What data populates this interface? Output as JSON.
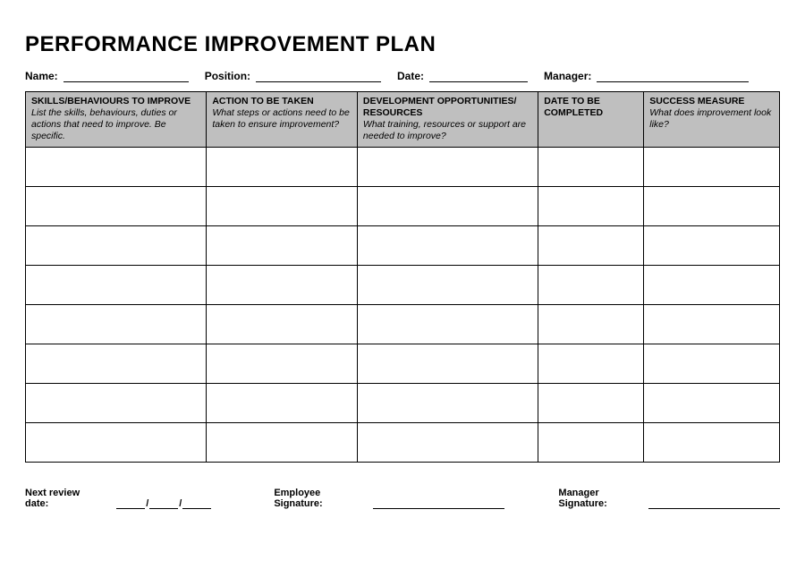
{
  "title": "PERFORMANCE IMPROVEMENT PLAN",
  "info_fields": {
    "name": {
      "label": "Name:",
      "line_width": 140
    },
    "position": {
      "label": "Position:",
      "line_width": 140
    },
    "date": {
      "label": "Date:",
      "line_width": 110
    },
    "manager": {
      "label": "Manager:",
      "line_width": 170
    }
  },
  "table": {
    "columns": [
      {
        "title": "SKILLS/BEHAVIOURS TO IMPROVE",
        "desc": "List the skills, behaviours, duties or actions that need to improve.  Be specific.",
        "width": "24%"
      },
      {
        "title": "ACTION TO BE TAKEN",
        "desc": "What steps or actions need to be taken to ensure improvement?",
        "width": "20%"
      },
      {
        "title": "DEVELOPMENT OPPORTUNITIES/ RESOURCES",
        "desc": "What training, resources or support are needed to improve?",
        "width": "24%"
      },
      {
        "title": "DATE TO BE COMPLETED",
        "desc": "",
        "width": "14%"
      },
      {
        "title": "SUCCESS MEASURE",
        "desc": "What does improvement look like?",
        "width": "18%"
      }
    ],
    "row_count": 8,
    "header_bg": "#bfbfbf",
    "border_color": "#000000"
  },
  "footer": {
    "review_label": "Next review date:",
    "date_separator": "/",
    "emp_sig_label": "Employee Signature:",
    "emp_sig_width": 150,
    "mgr_sig_label": "Manager Signature:",
    "mgr_sig_width": 150
  },
  "style": {
    "background": "#ffffff",
    "text_color": "#000000",
    "title_fontsize": 24,
    "label_fontsize": 12,
    "header_fontsize": 10.5,
    "footer_fontsize": 11
  }
}
